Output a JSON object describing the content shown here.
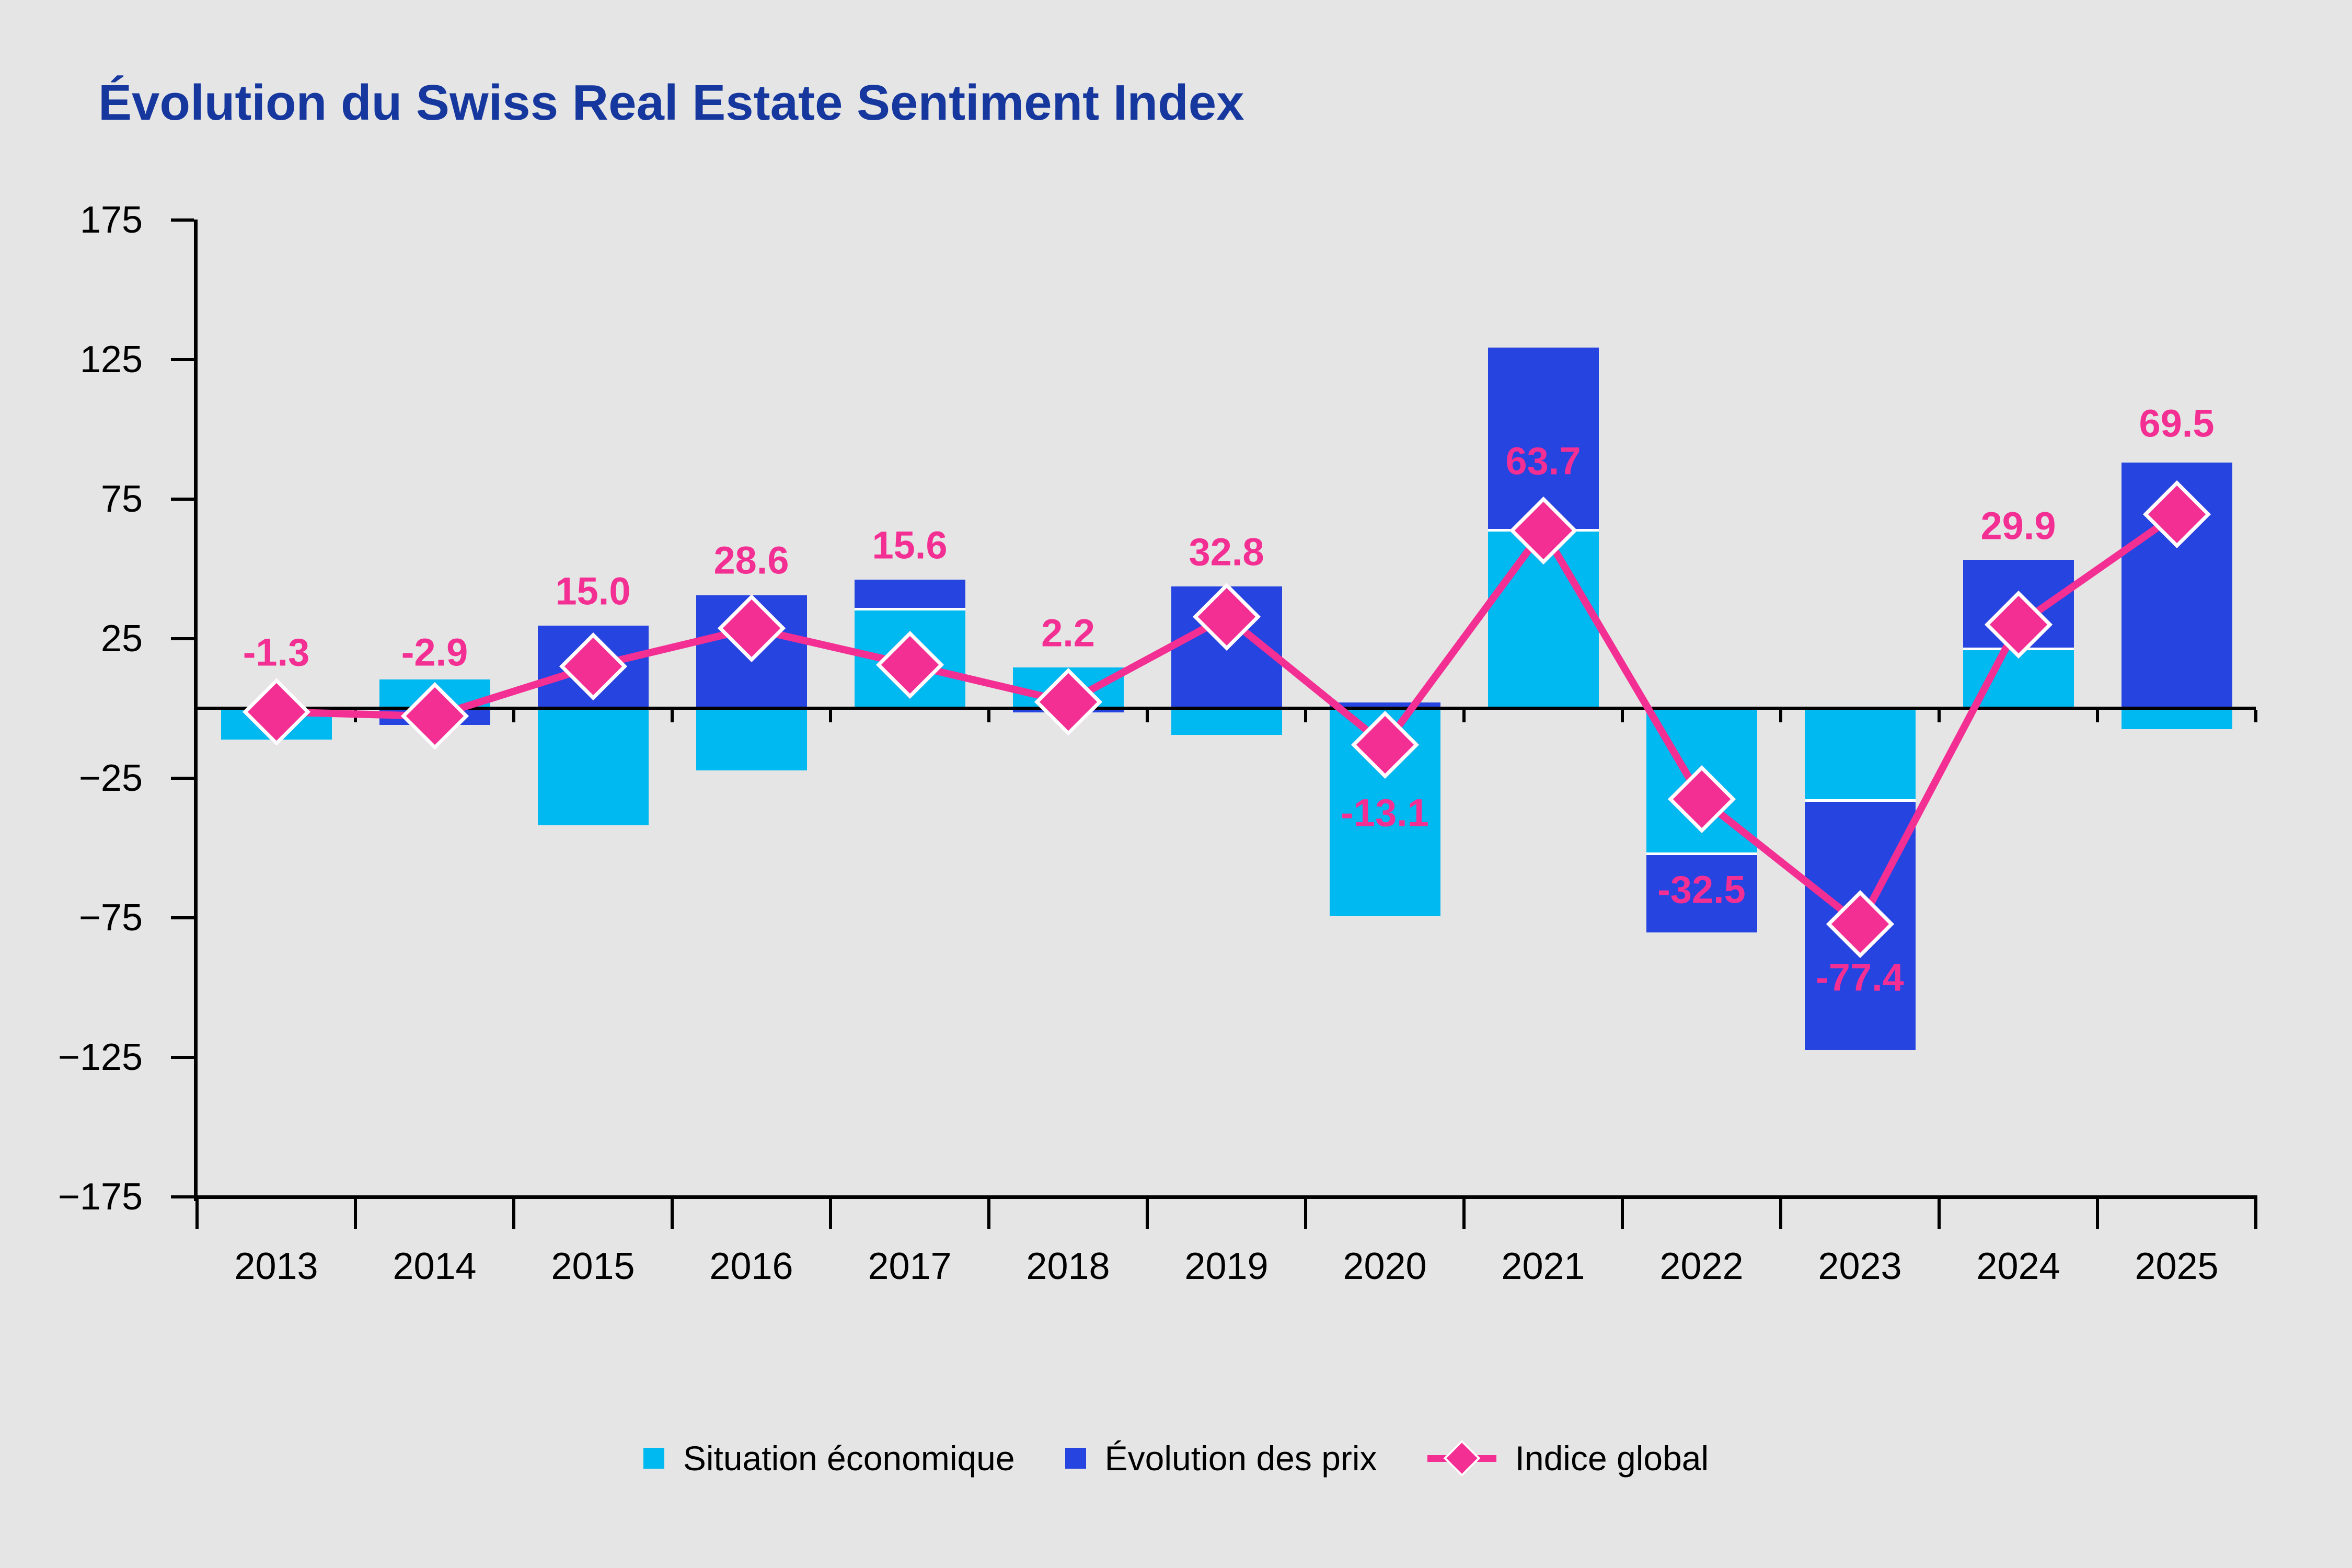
{
  "title": "Évolution du Swiss Real Estate Sentiment Index",
  "colors": {
    "background": "#e5e5e5",
    "economic_cyan": "#00b9f0",
    "price_blue": "#2644e0",
    "index_pink": "#f32f93",
    "title_blue": "#16389e",
    "axis_black": "#000000",
    "separator_white": "#ffffff"
  },
  "legend": {
    "items": [
      {
        "label": "Situation économique",
        "swatch": "square",
        "color_key": "economic_cyan"
      },
      {
        "label": "Évolution des prix",
        "swatch": "square",
        "color_key": "price_blue"
      },
      {
        "label": "Indice global",
        "swatch": "line-diamond",
        "color_key": "index_pink"
      }
    ]
  },
  "chart_data": {
    "type": "bar",
    "subtype": "stacked-bar-with-line",
    "categories": [
      "2013",
      "2014",
      "2015",
      "2016",
      "2017",
      "2018",
      "2019",
      "2020",
      "2021",
      "2022",
      "2023",
      "2024",
      "2025"
    ],
    "series": [
      {
        "name": "Situation économique",
        "role": "bar",
        "color_key": "economic_cyan",
        "values": [
          -11.3,
          10.3,
          -42.0,
          -22.3,
          35.5,
          14.6,
          -9.5,
          -74.5,
          63.8,
          -52.0,
          -33.0,
          21.4,
          -7.4
        ]
      },
      {
        "name": "Évolution des prix",
        "role": "bar",
        "color_key": "price_blue",
        "values": [
          0,
          -5.9,
          29.5,
          40.5,
          10.5,
          -1.5,
          43.7,
          2.0,
          65.4,
          -28.3,
          -89.5,
          31.8,
          88.0
        ]
      },
      {
        "name": "Indice global",
        "role": "line",
        "marker": "diamond",
        "color_key": "index_pink",
        "values": [
          -1.3,
          -2.9,
          15.0,
          28.6,
          15.6,
          2.2,
          32.8,
          -13.1,
          63.7,
          -32.5,
          -77.4,
          29.9,
          69.5
        ]
      }
    ],
    "point_labels": [
      "-1.3",
      "-2.9",
      "15.0",
      "28.6",
      "15.6",
      "2.2",
      "32.8",
      "-13.1",
      "63.7",
      "-32.5",
      "-77.4",
      "29.9",
      "69.5"
    ],
    "point_label_anchor_values": [
      20,
      20,
      42,
      53,
      58.5,
      27,
      56,
      -37.5,
      88.5,
      -65,
      -96.5,
      65.3,
      102
    ],
    "ylim": [
      -175,
      175
    ],
    "yticks": [
      175,
      125,
      75,
      25,
      -25,
      -75,
      -125,
      -175
    ],
    "grid": false,
    "legend_position": "bottom",
    "stacked": true,
    "baseline_at_zero": true
  }
}
